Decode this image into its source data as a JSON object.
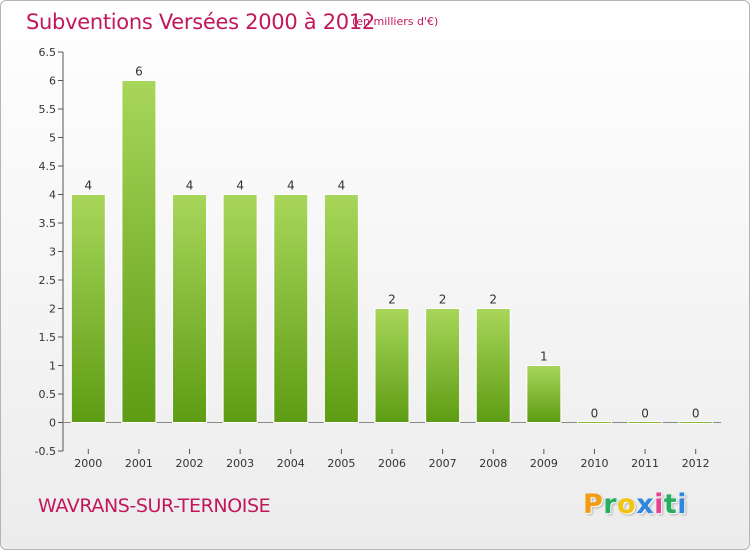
{
  "header": {
    "title": "Subventions Versées 2000 à 2012",
    "unit": "(en milliers d'€)"
  },
  "footer": {
    "commune": "WAVRANS-SUR-TERNOISE",
    "logo_letters": [
      "P",
      "r",
      "o",
      "x",
      "i",
      "t",
      "i"
    ],
    "logo_colors": [
      "#f39c12",
      "#27ae60",
      "#f1c40f",
      "#2e86de",
      "#e84393",
      "#27ae60",
      "#2e86de"
    ]
  },
  "colors": {
    "bar_top": "#a8d65a",
    "bar_bottom": "#5e9c14",
    "accent": "#c2185b"
  },
  "chart_data": {
    "type": "bar",
    "title": "Subventions Versées 2000 à 2012",
    "subtitle": "(en milliers d'€)",
    "categories": [
      "2000",
      "2001",
      "2002",
      "2003",
      "2004",
      "2005",
      "2006",
      "2007",
      "2008",
      "2009",
      "2010",
      "2011",
      "2012"
    ],
    "values": [
      4,
      6,
      4,
      4,
      4,
      4,
      2,
      2,
      2,
      1,
      0,
      0,
      0
    ],
    "ylim": [
      -0.5,
      6.5
    ],
    "yticks": [
      -0.5,
      0,
      0.5,
      1,
      1.5,
      2,
      2.5,
      3,
      3.5,
      4,
      4.5,
      5,
      5.5,
      6,
      6.5
    ],
    "ytick_labels": [
      "-0.5",
      "0",
      "0.5",
      "1",
      "1.5",
      "2",
      "2.5",
      "3",
      "3.5",
      "4",
      "4.5",
      "5",
      "5.5",
      "6",
      "6.5"
    ],
    "grid": false,
    "xlabel": "",
    "ylabel": ""
  }
}
